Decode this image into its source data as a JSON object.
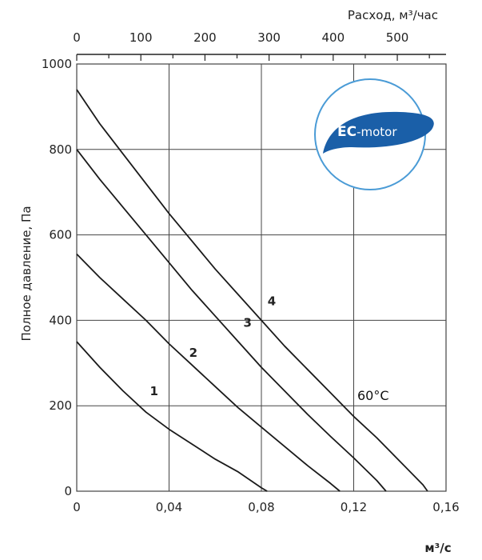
{
  "chart_data": {
    "type": "line",
    "ylabel": "Полное давление, Па",
    "x_bottom_unit": "м³/с",
    "x_top_label": "Расход, м³/час",
    "xlim": [
      0,
      0.16
    ],
    "ylim": [
      0,
      1000
    ],
    "x_ticks": [
      "0",
      "0,04",
      "0,08",
      "0,12",
      "0,16"
    ],
    "x_tick_values": [
      0,
      0.04,
      0.08,
      0.12,
      0.16
    ],
    "y_ticks": [
      "0",
      "200",
      "400",
      "600",
      "800",
      "1000"
    ],
    "y_tick_values": [
      0,
      200,
      400,
      600,
      800,
      1000
    ],
    "top_ticks": [
      "0",
      "100",
      "200",
      "300",
      "400",
      "500"
    ],
    "top_tick_values": [
      0,
      100,
      200,
      300,
      400,
      500
    ],
    "top_xlim": [
      0,
      576
    ],
    "grid": true,
    "annotation": "60°C",
    "logo": {
      "text": "EC-motor",
      "bold_part": "EC",
      "rest_part": "-motor"
    },
    "colors": {
      "logo_circle": "#4a9bd6",
      "logo_leaf": "#1a5fa8",
      "lines": "#1a1a1a",
      "grid": "#444444"
    },
    "series": [
      {
        "name": "1",
        "x": [
          0,
          0.01,
          0.02,
          0.03,
          0.04,
          0.05,
          0.06,
          0.07,
          0.08,
          0.0825
        ],
        "y": [
          350,
          290,
          235,
          185,
          145,
          110,
          75,
          45,
          8,
          0
        ]
      },
      {
        "name": "2",
        "x": [
          0,
          0.01,
          0.02,
          0.03,
          0.04,
          0.05,
          0.06,
          0.07,
          0.08,
          0.09,
          0.1,
          0.11,
          0.114
        ],
        "y": [
          555,
          500,
          450,
          400,
          345,
          295,
          245,
          195,
          150,
          105,
          60,
          18,
          0
        ]
      },
      {
        "name": "3",
        "x": [
          0,
          0.01,
          0.02,
          0.03,
          0.04,
          0.05,
          0.06,
          0.07,
          0.08,
          0.09,
          0.1,
          0.11,
          0.12,
          0.13,
          0.134
        ],
        "y": [
          800,
          730,
          665,
          600,
          535,
          470,
          410,
          350,
          290,
          235,
          180,
          128,
          78,
          25,
          0
        ]
      },
      {
        "name": "4",
        "x": [
          0,
          0.01,
          0.02,
          0.03,
          0.04,
          0.05,
          0.06,
          0.07,
          0.08,
          0.09,
          0.1,
          0.11,
          0.12,
          0.13,
          0.14,
          0.15,
          0.152
        ],
        "y": [
          940,
          860,
          790,
          720,
          650,
          585,
          520,
          460,
          400,
          340,
          285,
          230,
          175,
          125,
          70,
          15,
          0
        ]
      }
    ]
  }
}
